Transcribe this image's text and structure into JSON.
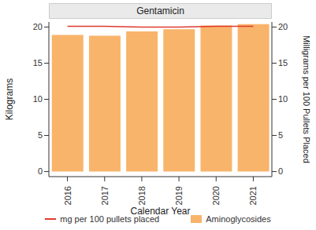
{
  "chart_data": {
    "type": "bar",
    "title": "Gentamicin",
    "x_label": "Calendar Year",
    "y_label": "Kilograms",
    "y2_label": "Milligrams per 100 Pullets Placed",
    "categories": [
      "2016",
      "2017",
      "2018",
      "2019",
      "2020",
      "2021"
    ],
    "series": [
      {
        "name": "mg per 100 pullets placed",
        "type": "line",
        "color": "#e03a2f",
        "axis": "y2",
        "values": [
          20.1,
          20.1,
          20.0,
          20.0,
          20.1,
          20.1
        ]
      },
      {
        "name": "Aminoglycosides",
        "type": "bar",
        "color": "#f9b46b",
        "values": [
          18.9,
          18.8,
          19.4,
          19.7,
          20.2,
          20.4
        ]
      }
    ],
    "ylim": [
      -0.7,
      20.7
    ],
    "yticks": [
      0,
      5,
      10,
      15,
      20
    ],
    "y2lim": [
      -0.7,
      20.7
    ],
    "y2ticks": [
      0,
      5,
      10,
      15,
      20
    ],
    "legend": "bottom"
  }
}
